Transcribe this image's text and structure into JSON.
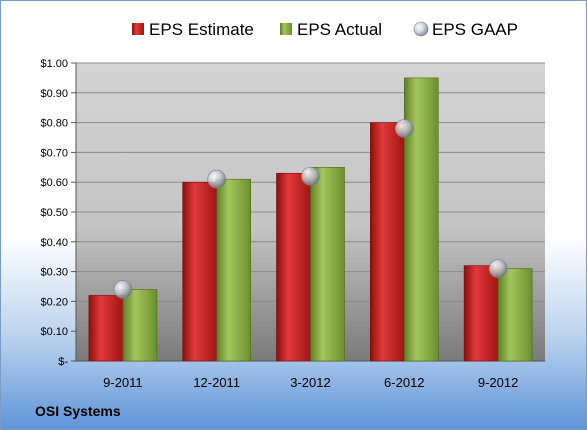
{
  "chart_data": {
    "type": "bar",
    "categories": [
      "9-2011",
      "12-2011",
      "3-2012",
      "6-2012",
      "9-2012"
    ],
    "series": [
      {
        "name": "EPS Estimate",
        "values": [
          0.22,
          0.6,
          0.63,
          0.8,
          0.32
        ],
        "color": "#cc1f1f"
      },
      {
        "name": "EPS Actual",
        "values": [
          0.24,
          0.61,
          0.65,
          0.95,
          0.31
        ],
        "color": "#8fb24a"
      },
      {
        "name": "EPS GAAP",
        "values": [
          0.24,
          0.61,
          0.62,
          0.78,
          0.31
        ],
        "marker": "sphere",
        "color": "#b8bcc4"
      }
    ],
    "yticks": [
      "$-",
      "$0.10",
      "$0.20",
      "$0.30",
      "$0.40",
      "$0.50",
      "$0.60",
      "$0.70",
      "$0.80",
      "$0.90",
      "$1.00"
    ],
    "ylim": [
      0,
      1.0
    ],
    "legend_position": "top",
    "grid": true
  },
  "footer": {
    "company": "OSI Systems"
  }
}
